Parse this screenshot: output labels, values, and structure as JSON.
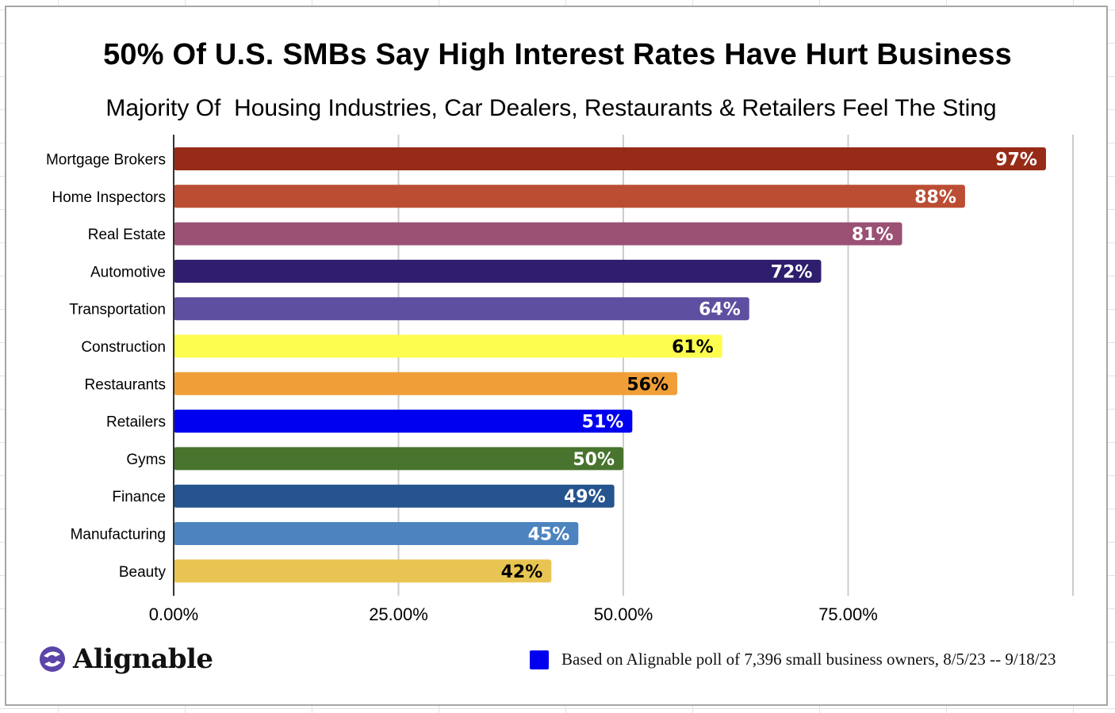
{
  "chart_data": {
    "type": "bar",
    "orientation": "horizontal",
    "title": "50% Of U.S. SMBs Say High Interest Rates Have Hurt Business",
    "subtitle": "Majority Of  Housing Industries, Car Dealers, Restaurants & Retailers Feel The Sting",
    "categories": [
      "Mortgage Brokers",
      "Home Inspectors",
      "Real Estate",
      "Automotive",
      "Transportation",
      "Construction",
      "Restaurants",
      "Retailers",
      "Gyms",
      "Finance",
      "Manufacturing",
      "Beauty"
    ],
    "values": [
      97,
      88,
      81,
      72,
      64,
      61,
      56,
      51,
      50,
      49,
      45,
      42
    ],
    "data_labels": [
      "97%",
      "88%",
      "81%",
      "72%",
      "64%",
      "61%",
      "56%",
      "51%",
      "50%",
      "49%",
      "45%",
      "42%"
    ],
    "bar_colors": [
      "#972b17",
      "#bb4d33",
      "#9a5174",
      "#2f1d6d",
      "#5f4fa0",
      "#fdfd4f",
      "#f09f38",
      "#0000f0",
      "#48742d",
      "#25548e",
      "#4d84c0",
      "#e8c452"
    ],
    "label_colors": [
      "#ffffff",
      "#ffffff",
      "#ffffff",
      "#ffffff",
      "#ffffff",
      "#000000",
      "#000000",
      "#ffffff",
      "#ffffff",
      "#ffffff",
      "#ffffff",
      "#000000"
    ],
    "xlabel": "",
    "ylabel": "",
    "xlim": [
      0,
      100
    ],
    "x_ticks": [
      0,
      25,
      50,
      75,
      100
    ],
    "x_tick_labels": [
      "0.00%",
      "25.00%",
      "50.00%",
      "75.00%",
      ""
    ],
    "grid": true,
    "legend": {
      "placement": "bottom-right",
      "entries": [
        {
          "label": "Based on Alignable poll of 7,396 small business owners, 8/5/23 -- 9/18/23",
          "color": "#0000ee"
        }
      ]
    }
  },
  "branding": {
    "logo_text": "Alignable",
    "logo_color": "#5b45a8"
  }
}
